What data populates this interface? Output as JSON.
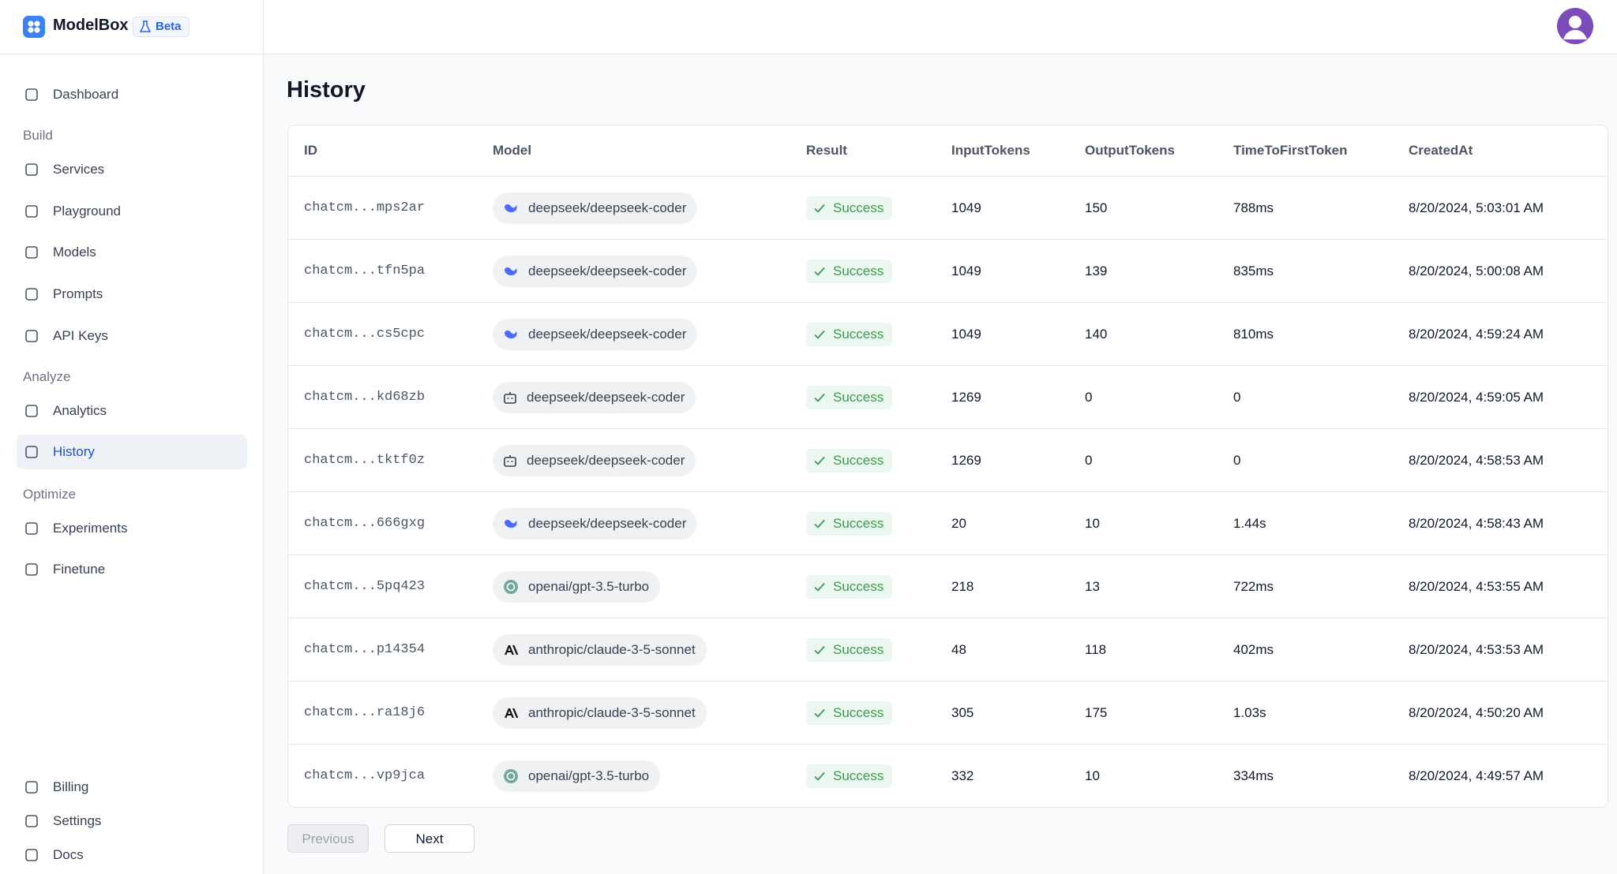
{
  "brand": {
    "name": "ModelBox",
    "badge": "Beta"
  },
  "nav": {
    "top": [
      "Dashboard"
    ],
    "sections": [
      {
        "title": "Build",
        "items": [
          "Services",
          "Playground",
          "Models",
          "Prompts",
          "API Keys"
        ]
      },
      {
        "title": "Analyze",
        "items": [
          "Analytics",
          "History"
        ]
      },
      {
        "title": "Optimize",
        "items": [
          "Experiments",
          "Finetune"
        ]
      }
    ],
    "bottom": [
      "Billing",
      "Settings",
      "Docs"
    ]
  },
  "page": {
    "title": "History"
  },
  "table": {
    "columns": [
      "ID",
      "Model",
      "Result",
      "InputTokens",
      "OutputTokens",
      "TimeToFirstToken",
      "CreatedAt"
    ],
    "rows": [
      [
        "chatcm...mps2ar",
        "deepseek/deepseek-coder",
        "Success",
        "1049",
        "150",
        "788ms",
        "8/20/2024, 5:03:01 AM"
      ],
      [
        "chatcm...tfn5pa",
        "deepseek/deepseek-coder",
        "Success",
        "1049",
        "139",
        "835ms",
        "8/20/2024, 5:00:08 AM"
      ],
      [
        "chatcm...cs5cpc",
        "deepseek/deepseek-coder",
        "Success",
        "1049",
        "140",
        "810ms",
        "8/20/2024, 4:59:24 AM"
      ],
      [
        "chatcm...kd68zb",
        "deepseek/deepseek-coder",
        "Success",
        "1269",
        "0",
        "0",
        "8/20/2024, 4:59:05 AM"
      ],
      [
        "chatcm...tktf0z",
        "deepseek/deepseek-coder",
        "Success",
        "1269",
        "0",
        "0",
        "8/20/2024, 4:58:53 AM"
      ],
      [
        "chatcm...666gxg",
        "deepseek/deepseek-coder",
        "Success",
        "20",
        "10",
        "1.44s",
        "8/20/2024, 4:58:43 AM"
      ],
      [
        "chatcm...5pq423",
        "openai/gpt-3.5-turbo",
        "Success",
        "218",
        "13",
        "722ms",
        "8/20/2024, 4:53:55 AM"
      ],
      [
        "chatcm...p14354",
        "anthropic/claude-3-5-sonnet",
        "Success",
        "48",
        "118",
        "402ms",
        "8/20/2024, 4:53:53 AM"
      ],
      [
        "chatcm...ra18j6",
        "anthropic/claude-3-5-sonnet",
        "Success",
        "305",
        "175",
        "1.03s",
        "8/20/2024, 4:50:20 AM"
      ],
      [
        "chatcm...vp9jca",
        "openai/gpt-3.5-turbo",
        "Success",
        "332",
        "10",
        "334ms",
        "8/20/2024, 4:49:57 AM"
      ]
    ]
  },
  "pagination": {
    "previous": "Previous",
    "next": "Next"
  }
}
